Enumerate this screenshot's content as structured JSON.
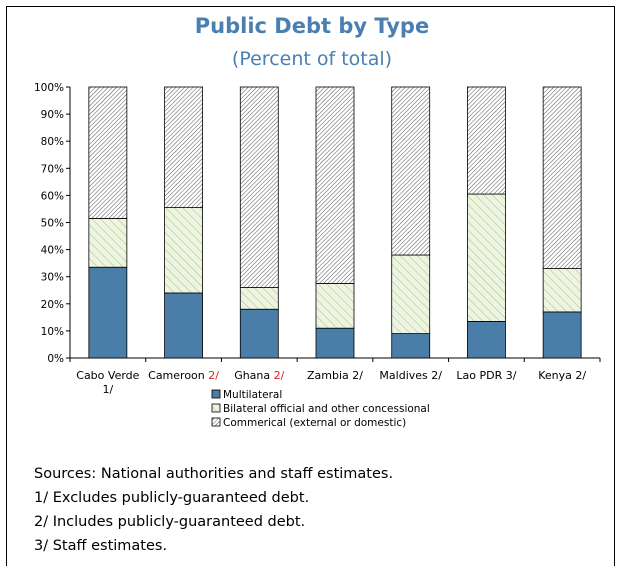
{
  "chart_data": {
    "type": "bar",
    "stacked": true,
    "title": "Public Debt by Type",
    "subtitle": "(Percent of total)",
    "categories": [
      {
        "name": "Cabo Verde",
        "note": "1/"
      },
      {
        "name": "Cameroon",
        "note": "2/"
      },
      {
        "name": "Ghana",
        "note": "2/"
      },
      {
        "name": "Zambia",
        "note": "2/"
      },
      {
        "name": "Maldives",
        "note": "2/"
      },
      {
        "name": "Lao PDR",
        "note": "3/"
      },
      {
        "name": "Kenya",
        "note": "2/"
      }
    ],
    "series": [
      {
        "name": "Multilateral",
        "color": "#4a7ea8",
        "pattern": "solid",
        "values": [
          33.5,
          24,
          18,
          11,
          9,
          13.5,
          17
        ]
      },
      {
        "name": "Bilateral official and other concessional",
        "color": "#c5d9a3",
        "pattern": "diagonal-light",
        "values": [
          18,
          31.5,
          8,
          16.5,
          29,
          47,
          16
        ]
      },
      {
        "name": "Commerical (external or domestic)",
        "color": "#555555",
        "pattern": "diagonal-dense",
        "values": [
          48.5,
          44.5,
          74,
          72.5,
          62,
          39.5,
          67
        ]
      }
    ],
    "yticks": [
      "0%",
      "10%",
      "20%",
      "30%",
      "40%",
      "50%",
      "60%",
      "70%",
      "80%",
      "90%",
      "100%"
    ],
    "ylim": [
      0,
      100
    ],
    "grid": false,
    "legend": "bottom"
  },
  "notes": [
    "Sources: National authorities and staff estimates.",
    "1/ Excludes publicly-guaranteed debt.",
    "2/ Includes publicly-guaranteed debt.",
    "3/ Staff estimates."
  ],
  "note_highlight_color": "#e0201b"
}
